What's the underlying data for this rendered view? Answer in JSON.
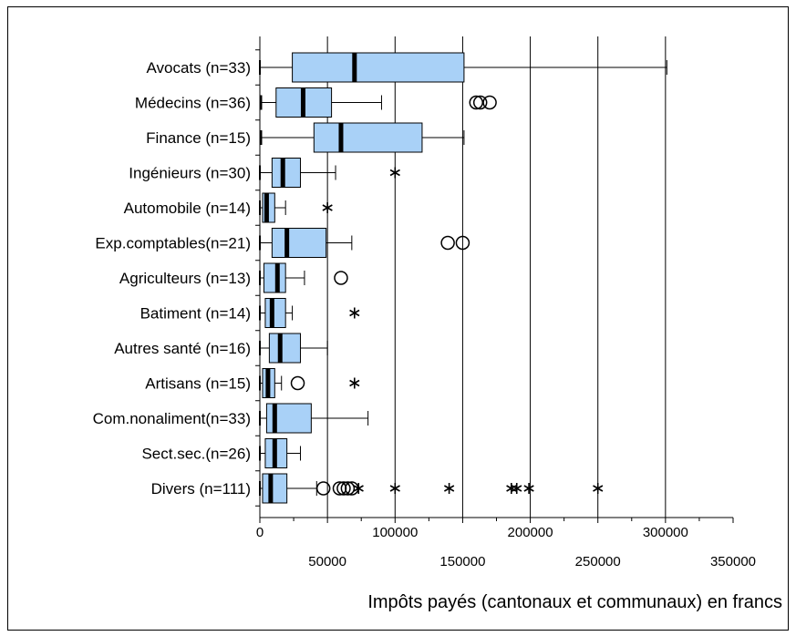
{
  "chart_data": {
    "type": "boxplot",
    "orientation": "horizontal",
    "xlabel": "Impôts payés (cantonaux et communaux) en francs",
    "xlim": [
      0,
      350000
    ],
    "xticks": [
      0,
      50000,
      100000,
      150000,
      200000,
      250000,
      300000,
      350000
    ],
    "xtick_labels": [
      "0",
      "50000",
      "100000",
      "150000",
      "200000",
      "250000",
      "300000",
      "350000"
    ],
    "grid": "vertical major gridlines",
    "box_color": "#a9d1f7",
    "categories": [
      {
        "label": "Avocats (n=33)",
        "min": 0,
        "q1": 24000,
        "median": 70000,
        "q3": 151000,
        "max": 301000,
        "outliers": [],
        "extremes": []
      },
      {
        "label": "Médecins (n=36)",
        "min": 1000,
        "q1": 12000,
        "median": 32000,
        "q3": 53000,
        "max": 90000,
        "outliers": [
          160000,
          163000,
          170000
        ],
        "extremes": []
      },
      {
        "label": "Finance (n=15)",
        "min": 1000,
        "q1": 40000,
        "median": 60000,
        "q3": 120000,
        "max": 151000,
        "outliers": [],
        "extremes": []
      },
      {
        "label": "Ingénieurs (n=30)",
        "min": 0,
        "q1": 9000,
        "median": 17000,
        "q3": 30000,
        "max": 56000,
        "outliers": [],
        "extremes": [
          100000
        ]
      },
      {
        "label": "Automobile (n=14)",
        "min": 0,
        "q1": 2000,
        "median": 5000,
        "q3": 11000,
        "max": 19000,
        "outliers": [],
        "extremes": [
          50000
        ]
      },
      {
        "label": "Exp.comptables(n=21)",
        "min": 0,
        "q1": 9000,
        "median": 20000,
        "q3": 49000,
        "max": 68000,
        "outliers": [
          139000,
          150000
        ],
        "extremes": []
      },
      {
        "label": "Agriculteurs (n=13)",
        "min": 0,
        "q1": 3000,
        "median": 13000,
        "q3": 19000,
        "max": 33000,
        "outliers": [
          60000
        ],
        "extremes": []
      },
      {
        "label": "Batiment (n=14)",
        "min": 0,
        "q1": 4000,
        "median": 9000,
        "q3": 19000,
        "max": 24000,
        "outliers": [],
        "extremes": [
          70000
        ]
      },
      {
        "label": "Autres santé (n=16)",
        "min": 0,
        "q1": 7000,
        "median": 15000,
        "q3": 30000,
        "max": 50000,
        "outliers": [],
        "extremes": []
      },
      {
        "label": "Artisans (n=15)",
        "min": 0,
        "q1": 2000,
        "median": 6000,
        "q3": 11000,
        "max": 16000,
        "outliers": [
          28000
        ],
        "extremes": [
          70000
        ]
      },
      {
        "label": "Com.nonaliment(n=33)",
        "min": 0,
        "q1": 5000,
        "median": 11000,
        "q3": 38000,
        "max": 80000,
        "outliers": [],
        "extremes": []
      },
      {
        "label": "Sect.sec.(n=26)",
        "min": 0,
        "q1": 4000,
        "median": 11000,
        "q3": 20000,
        "max": 30000,
        "outliers": [],
        "extremes": []
      },
      {
        "label": "Divers (n=111)",
        "min": 0,
        "q1": 2000,
        "median": 8000,
        "q3": 20000,
        "max": 42000,
        "outliers": [
          47000,
          59000,
          62000,
          65000,
          68000
        ],
        "extremes": [
          73000,
          100000,
          140000,
          186000,
          190000,
          199000,
          250000
        ]
      }
    ]
  }
}
